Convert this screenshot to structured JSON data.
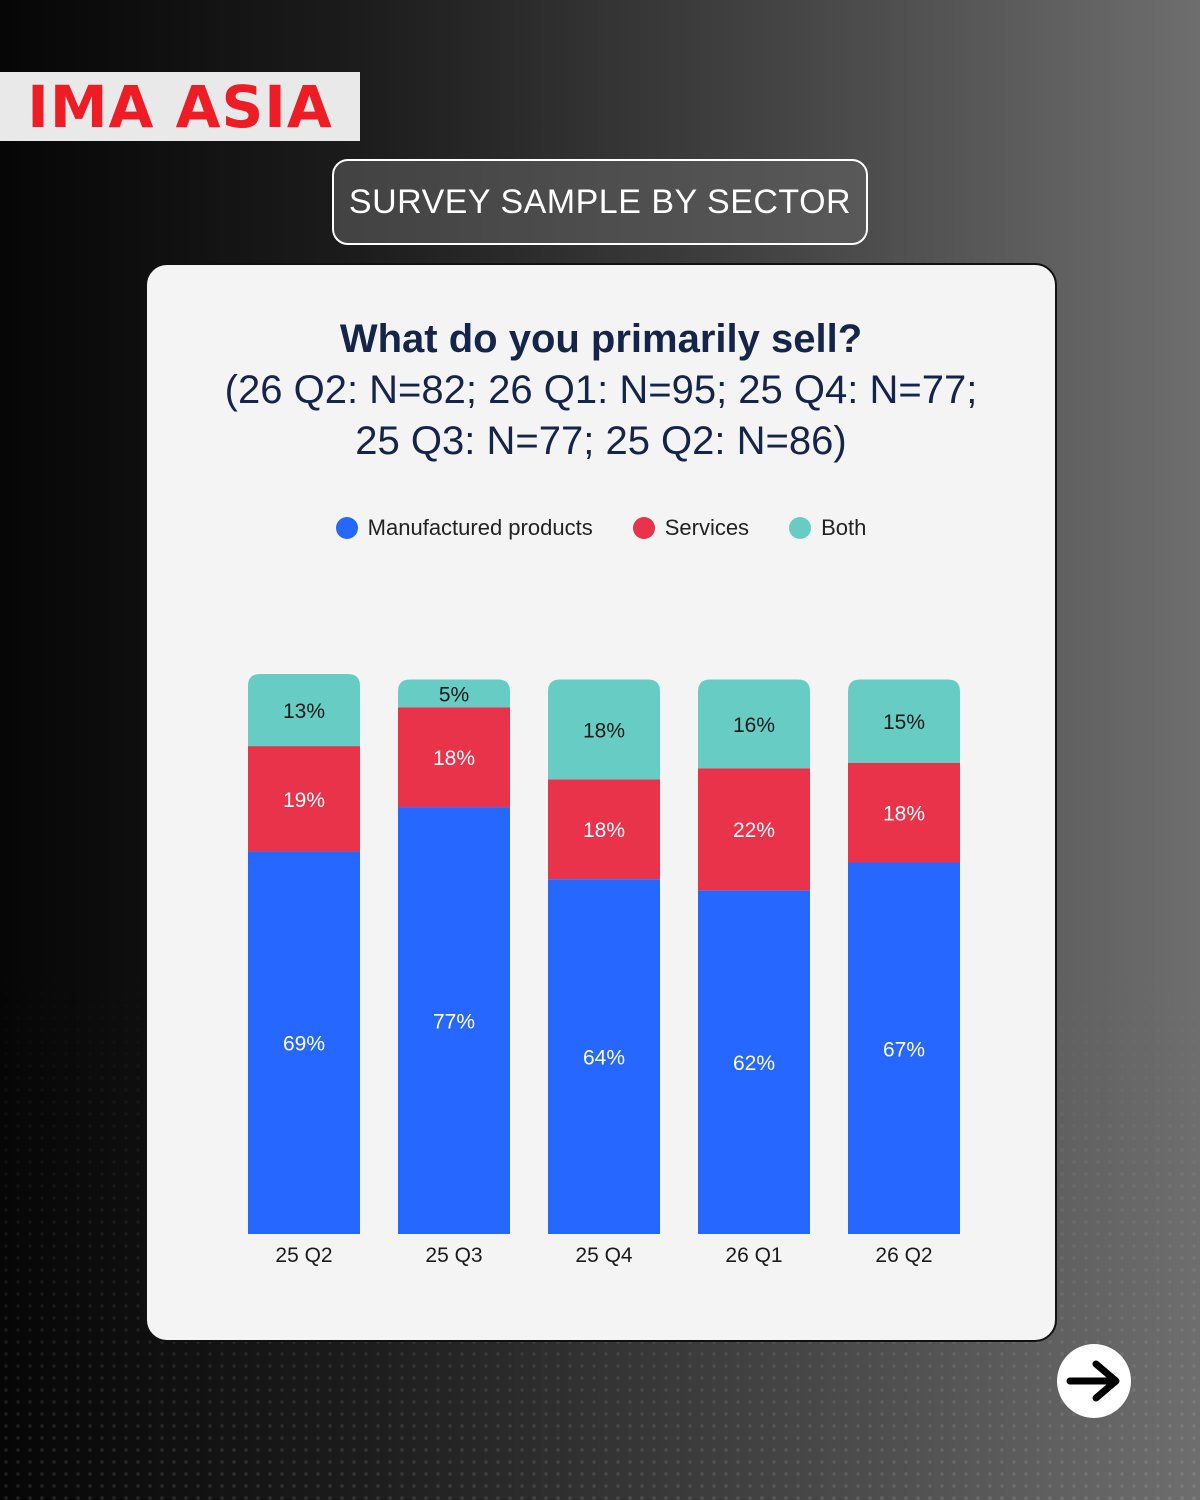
{
  "brand": {
    "logo_text": "IMA ASIA"
  },
  "header": {
    "title": "SURVEY SAMPLE BY SECTOR"
  },
  "chart_data": {
    "type": "bar",
    "stacked": true,
    "title": "What do you primarily sell?",
    "subtitle": "(26 Q2: N=82; 26 Q1: N=95; 25 Q4: N=77; 25 Q3: N=77;  25 Q2: N=86)",
    "categories": [
      "25 Q2",
      "25 Q3",
      "25 Q4",
      "26 Q1",
      "26 Q2"
    ],
    "series": [
      {
        "name": "Manufactured products",
        "color": "#2667ff",
        "values": [
          69,
          77,
          64,
          62,
          67
        ],
        "labels": [
          "69%",
          "77%",
          "64%",
          "62%",
          "67%"
        ]
      },
      {
        "name": "Services",
        "color": "#e8334a",
        "values": [
          19,
          18,
          18,
          22,
          18
        ],
        "labels": [
          "19%",
          "18%",
          "18%",
          "22%",
          "18%"
        ]
      },
      {
        "name": "Both",
        "color": "#66ccc4",
        "values": [
          13,
          5,
          18,
          16,
          15
        ],
        "labels": [
          "13%",
          "5%",
          "18%",
          "16%",
          "15%"
        ]
      }
    ],
    "ylim": [
      0,
      101
    ],
    "grid": false,
    "legend_position": "top"
  },
  "navigation": {
    "next_icon": "arrow-right-icon"
  }
}
